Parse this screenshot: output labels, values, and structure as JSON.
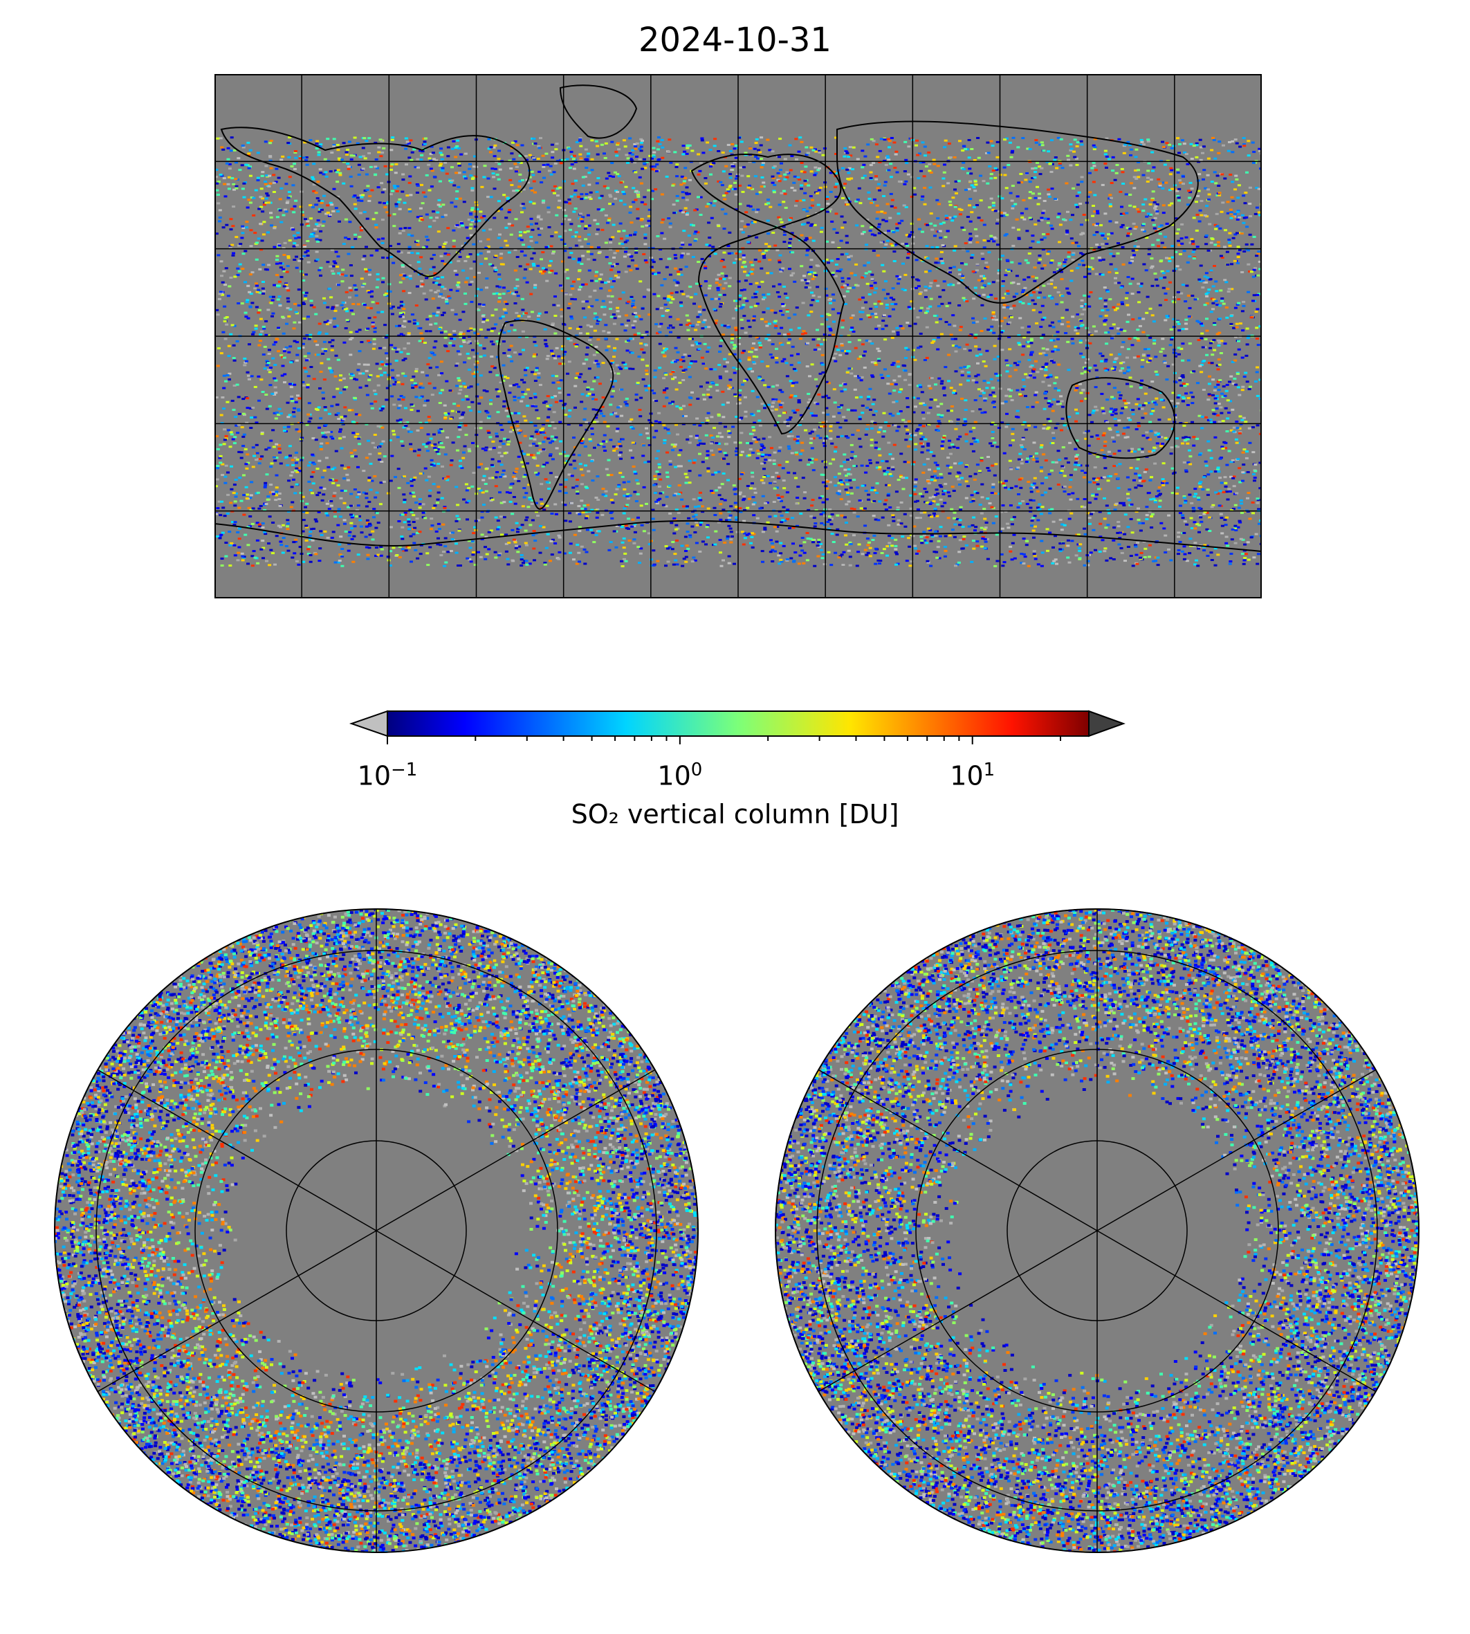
{
  "figure": {
    "title": "2024-10-31"
  },
  "colorbar": {
    "label": "SO₂ vertical column [DU]",
    "scale": "log",
    "range": [
      0.1,
      25
    ],
    "extend": "both",
    "under_color": "#c0c0c0",
    "over_color": "#404040",
    "colormap": "jet",
    "ticks": [
      {
        "base": "10",
        "exp": "−1",
        "value": 0.1
      },
      {
        "base": "10",
        "exp": "0",
        "value": 1
      },
      {
        "base": "10",
        "exp": "1",
        "value": 10
      }
    ]
  },
  "maps": {
    "global": {
      "projection": "plate-carree",
      "background": "#808080"
    },
    "north_polar": {
      "projection": "north-polar-stereographic",
      "background": "#808080"
    },
    "south_polar": {
      "projection": "south-polar-stereographic",
      "background": "#808080"
    }
  }
}
